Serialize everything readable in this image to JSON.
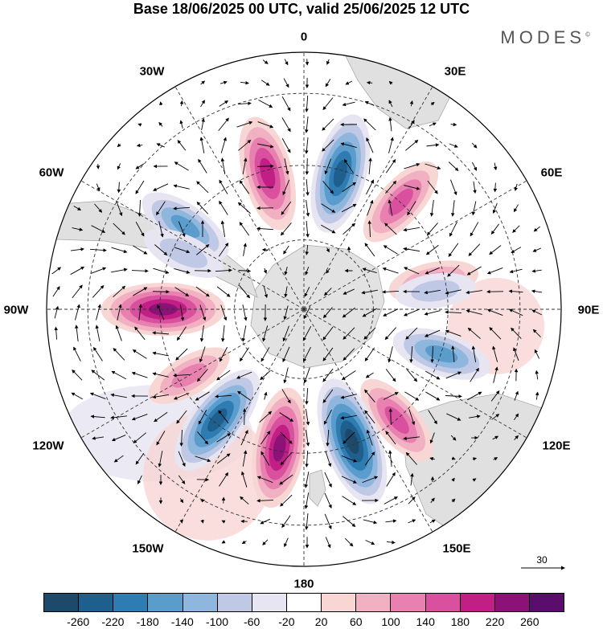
{
  "title": "Base 18/06/2025 00 UTC, valid 25/06/2025 12 UTC",
  "brand": "MODES",
  "brand_mark": "©",
  "lon_labels": {
    "n": "0",
    "ne": "30E",
    "e60": "60E",
    "e90": "90E",
    "e120": "120E",
    "e150": "150E",
    "s": "180",
    "w150": "150W",
    "w120": "120W",
    "w90": "90W",
    "w60": "60W",
    "w30": "30W"
  },
  "reference_vector": "30",
  "colorbar": {
    "colors": [
      "#1d4a6b",
      "#1f5f8d",
      "#2f7cb3",
      "#5a9ccb",
      "#8fb6dc",
      "#bfc9e5",
      "#e6e5f1",
      "#ffffff",
      "#f7d6d4",
      "#f2b0c3",
      "#e880b0",
      "#d9519e",
      "#c21f86",
      "#8c1277",
      "#5b0d6e"
    ],
    "ticks": [
      "-260",
      "-220",
      "-180",
      "-140",
      "-100",
      "-60",
      "-20",
      "20",
      "60",
      "100",
      "140",
      "180",
      "220",
      "260"
    ]
  },
  "anomaly_centers": [
    {
      "sign": "negative",
      "value": -220,
      "direction_deg": 15
    },
    {
      "sign": "positive",
      "value": 200,
      "direction_deg": 345
    },
    {
      "sign": "positive",
      "value": 140,
      "direction_deg": 42
    },
    {
      "sign": "negative",
      "value": -140,
      "direction_deg": 305
    },
    {
      "sign": "negative",
      "value": -80,
      "direction_deg": 295
    },
    {
      "sign": "positive",
      "value": 100,
      "direction_deg": 78
    },
    {
      "sign": "negative",
      "value": -60,
      "direction_deg": 82
    },
    {
      "sign": "positive",
      "value": 230,
      "direction_deg": 270
    },
    {
      "sign": "negative",
      "value": -140,
      "direction_deg": 108
    },
    {
      "sign": "positive",
      "value": 140,
      "direction_deg": 140
    },
    {
      "sign": "negative",
      "value": -260,
      "direction_deg": 160
    },
    {
      "sign": "positive",
      "value": 220,
      "direction_deg": 190
    },
    {
      "sign": "negative",
      "value": -220,
      "direction_deg": 218
    },
    {
      "sign": "positive",
      "value": 100,
      "direction_deg": 240
    }
  ]
}
